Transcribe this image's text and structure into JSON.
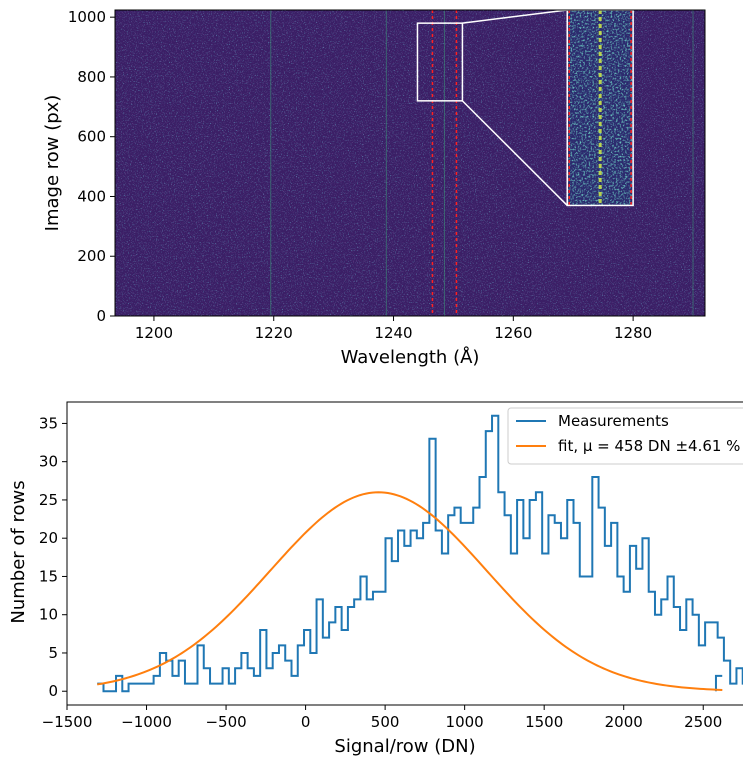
{
  "chart_data": [
    {
      "type": "heatmap",
      "xlabel": "Wavelength (Å)",
      "ylabel": "Image row (px)",
      "xlim": [
        1193.5,
        1292
      ],
      "ylim": [
        0,
        1024
      ],
      "x_ticks": [
        1200,
        1220,
        1240,
        1260,
        1280
      ],
      "y_ticks": [
        0,
        200,
        400,
        600,
        800,
        1000
      ],
      "colormap": "viridis",
      "background_color": "#3b1f66",
      "emission_lines_x": [
        1219.5,
        1238.8,
        1248.5,
        1290
      ],
      "marker_lines_x": [
        1246.5,
        1250.5
      ],
      "marker_line_color": "#ff2020",
      "zoom_region": {
        "x": [
          1246.5,
          1250.5
        ],
        "y": [
          720,
          980
        ]
      },
      "inset_region": {
        "x": [
          1269,
          1280
        ],
        "y": [
          370,
          1024
        ]
      },
      "inset_border_color": "#ffffff"
    },
    {
      "type": "line",
      "xlabel": "Signal/row (DN)",
      "ylabel": "Number of rows",
      "xlim": [
        -1500,
        2750
      ],
      "ylim": [
        -1.8,
        37.8
      ],
      "x_ticks": [
        -1500,
        -1000,
        -500,
        0,
        500,
        1000,
        1500,
        2000,
        2500
      ],
      "y_ticks": [
        0,
        5,
        10,
        15,
        20,
        25,
        30,
        35
      ],
      "legend_position": "top-right",
      "series": [
        {
          "name": "Measurements",
          "style": "step",
          "color": "#1f77b4",
          "x_start": -1310,
          "bin_width": 39.4,
          "values": [
            1,
            0,
            0,
            2,
            0,
            1,
            1,
            1,
            1,
            2,
            5,
            4,
            2,
            4,
            1,
            1,
            6,
            3,
            1,
            1,
            3,
            1,
            3,
            5,
            3,
            2,
            8,
            3,
            5,
            6,
            4,
            2,
            6,
            8,
            5,
            12,
            7,
            9,
            11,
            8,
            11,
            12,
            15,
            12,
            13,
            13,
            20,
            17,
            21,
            19,
            21,
            20,
            22,
            33,
            21,
            18,
            23,
            24,
            22,
            22,
            24,
            28,
            34,
            36,
            26,
            23,
            18,
            25,
            20,
            25,
            26,
            18,
            23,
            22,
            20,
            25,
            22,
            15,
            15,
            28,
            24,
            19,
            22,
            15,
            13,
            19,
            16,
            20,
            13,
            10,
            12,
            15,
            11,
            8,
            12,
            10,
            6,
            9,
            9,
            7,
            4,
            1,
            3,
            1,
            3,
            4,
            1,
            3,
            2,
            4,
            3,
            2,
            1,
            0,
            1,
            1,
            0,
            0,
            0,
            0,
            1,
            1,
            1,
            0,
            1,
            0,
            0,
            0,
            0,
            0,
            0,
            1,
            2,
            1
          ],
          "extra_step": {
            "x_start": 2580,
            "value": 2
          }
        },
        {
          "name": "fit, μ = 458 DN ±4.61 %",
          "style": "line",
          "color": "#ff7f0e",
          "model": "gaussian",
          "mu": 458,
          "sigma": 680,
          "amplitude": 26,
          "x_range": [
            -1310,
            2620
          ]
        }
      ]
    }
  ]
}
